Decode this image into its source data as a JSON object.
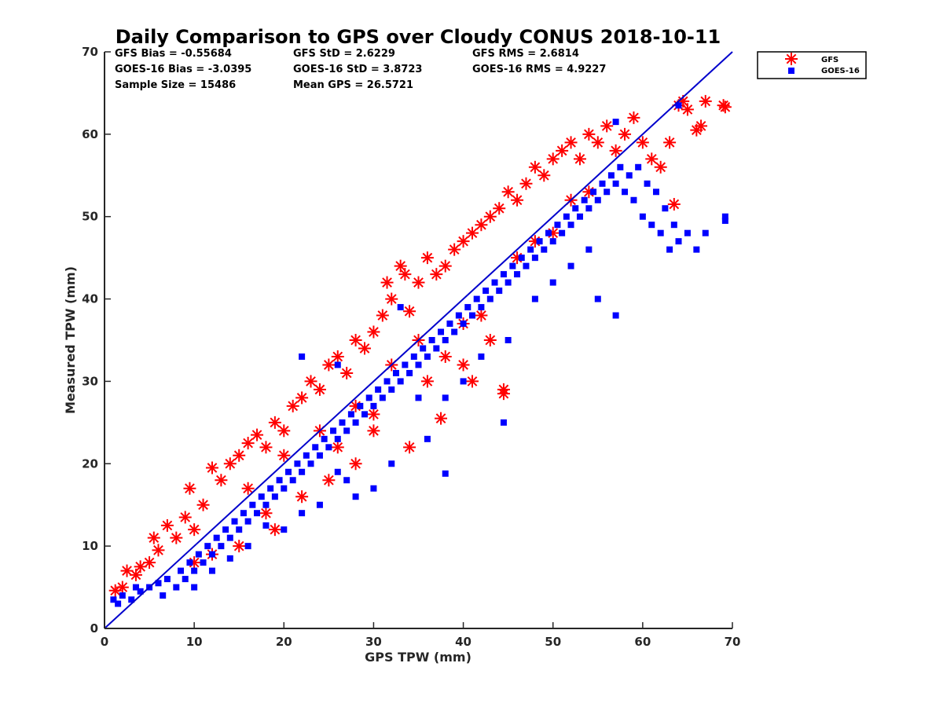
{
  "chart_data": {
    "type": "scatter",
    "title": "Daily Comparison to GPS over Cloudy CONUS 2018-10-11",
    "xlabel": "GPS TPW (mm)",
    "ylabel": "Measured TPW (mm)",
    "xlim": [
      0,
      70
    ],
    "ylim": [
      0,
      70
    ],
    "xticks": [
      "0",
      "10",
      "20",
      "30",
      "40",
      "50",
      "60",
      "70"
    ],
    "yticks": [
      "0",
      "10",
      "20",
      "30",
      "40",
      "50",
      "60",
      "70"
    ],
    "grid": false,
    "legend_placement": "outside-top-right",
    "reference_line": {
      "x": [
        0,
        70
      ],
      "y": [
        0,
        70
      ],
      "color": "#0000cc"
    },
    "stats": {
      "gfs_bias": "GFS Bias = -0.55684",
      "gfs_std": "GFS StD = 2.6229",
      "gfs_rms": "GFS RMS = 2.6814",
      "goes_bias": "GOES-16 Bias = -3.0395",
      "goes_std": "GOES-16 StD = 3.8723",
      "goes_rms": "GOES-16 RMS = 4.9227",
      "sample_size": "Sample Size = 15486",
      "mean_gps": "Mean GPS = 26.5721"
    },
    "series": [
      {
        "name": "GFS",
        "marker": "asterisk",
        "color": "#ff0000",
        "points": [
          [
            1.2,
            4.6
          ],
          [
            2,
            5
          ],
          [
            2.5,
            7
          ],
          [
            3.5,
            6.5
          ],
          [
            4,
            7.5
          ],
          [
            5,
            8
          ],
          [
            5.5,
            11
          ],
          [
            6,
            9.5
          ],
          [
            7,
            12.5
          ],
          [
            8,
            11
          ],
          [
            9,
            13.5
          ],
          [
            9.5,
            17
          ],
          [
            10,
            12
          ],
          [
            11,
            15
          ],
          [
            12,
            19.5
          ],
          [
            13,
            18
          ],
          [
            14,
            20
          ],
          [
            15,
            21
          ],
          [
            16,
            22.5
          ],
          [
            17,
            23.5
          ],
          [
            18,
            22
          ],
          [
            19,
            25
          ],
          [
            20,
            24
          ],
          [
            21,
            27
          ],
          [
            22,
            28
          ],
          [
            23,
            30
          ],
          [
            24,
            29
          ],
          [
            25,
            32
          ],
          [
            26,
            33
          ],
          [
            27,
            31
          ],
          [
            28,
            35
          ],
          [
            29,
            34
          ],
          [
            30,
            36
          ],
          [
            31,
            38
          ],
          [
            31.5,
            42
          ],
          [
            32,
            40
          ],
          [
            33,
            44
          ],
          [
            33.5,
            43
          ],
          [
            34,
            38.5
          ],
          [
            35,
            42
          ],
          [
            36,
            45
          ],
          [
            37,
            43
          ],
          [
            38,
            44
          ],
          [
            39,
            46
          ],
          [
            40,
            47
          ],
          [
            41,
            48
          ],
          [
            42,
            49
          ],
          [
            43,
            50
          ],
          [
            44,
            51
          ],
          [
            45,
            53
          ],
          [
            46,
            52
          ],
          [
            47,
            54
          ],
          [
            48,
            56
          ],
          [
            49,
            55
          ],
          [
            50,
            57
          ],
          [
            51,
            58
          ],
          [
            52,
            59
          ],
          [
            53,
            57
          ],
          [
            54,
            60
          ],
          [
            55,
            59
          ],
          [
            56,
            61
          ],
          [
            57,
            58
          ],
          [
            58,
            60
          ],
          [
            59,
            62
          ],
          [
            60,
            59
          ],
          [
            61,
            57
          ],
          [
            62,
            56
          ],
          [
            63,
            59
          ],
          [
            63.5,
            51.5
          ],
          [
            64,
            63.5
          ],
          [
            64.5,
            64
          ],
          [
            65,
            63
          ],
          [
            66,
            60.5
          ],
          [
            66.5,
            61
          ],
          [
            67,
            64
          ],
          [
            69,
            63.5
          ],
          [
            69.2,
            63.3
          ],
          [
            44.5,
            29
          ],
          [
            44.5,
            28.5
          ],
          [
            41,
            30
          ],
          [
            37.5,
            25.5
          ],
          [
            34,
            22
          ],
          [
            30,
            26
          ],
          [
            28,
            20
          ],
          [
            25,
            18
          ],
          [
            22,
            16
          ],
          [
            19,
            12
          ],
          [
            18,
            14
          ],
          [
            15,
            10
          ],
          [
            12,
            9
          ],
          [
            35,
            35
          ],
          [
            38,
            33
          ],
          [
            40,
            37
          ],
          [
            42,
            38
          ],
          [
            36,
            30
          ],
          [
            32,
            32
          ],
          [
            28,
            27
          ],
          [
            24,
            24
          ],
          [
            20,
            21
          ],
          [
            16,
            17
          ],
          [
            46,
            45
          ],
          [
            48,
            47
          ],
          [
            50,
            48
          ],
          [
            52,
            52
          ],
          [
            54,
            53
          ],
          [
            43,
            35
          ],
          [
            40,
            32
          ],
          [
            30,
            24
          ],
          [
            26,
            22
          ],
          [
            10,
            8
          ]
        ]
      },
      {
        "name": "GOES-16",
        "marker": "square",
        "color": "#0000ff",
        "points": [
          [
            1,
            3.5
          ],
          [
            1.5,
            3
          ],
          [
            2,
            4
          ],
          [
            3,
            3.5
          ],
          [
            3.5,
            5
          ],
          [
            4,
            4.5
          ],
          [
            5,
            5
          ],
          [
            6,
            5.5
          ],
          [
            6.5,
            4
          ],
          [
            7,
            6
          ],
          [
            8,
            5
          ],
          [
            8.5,
            7
          ],
          [
            9,
            6
          ],
          [
            9.5,
            8
          ],
          [
            10,
            7
          ],
          [
            10.5,
            9
          ],
          [
            11,
            8
          ],
          [
            11.5,
            10
          ],
          [
            12,
            9
          ],
          [
            12.5,
            11
          ],
          [
            13,
            10
          ],
          [
            13.5,
            12
          ],
          [
            14,
            11
          ],
          [
            14.5,
            13
          ],
          [
            15,
            12
          ],
          [
            15.5,
            14
          ],
          [
            16,
            13
          ],
          [
            16.5,
            15
          ],
          [
            17,
            14
          ],
          [
            17.5,
            16
          ],
          [
            18,
            15
          ],
          [
            18.5,
            17
          ],
          [
            19,
            16
          ],
          [
            19.5,
            18
          ],
          [
            20,
            17
          ],
          [
            20.5,
            19
          ],
          [
            21,
            18
          ],
          [
            21.5,
            20
          ],
          [
            22,
            19
          ],
          [
            22.5,
            21
          ],
          [
            23,
            20
          ],
          [
            23.5,
            22
          ],
          [
            24,
            21
          ],
          [
            24.5,
            23
          ],
          [
            25,
            22
          ],
          [
            25.5,
            24
          ],
          [
            26,
            23
          ],
          [
            26.5,
            25
          ],
          [
            27,
            24
          ],
          [
            27.5,
            26
          ],
          [
            28,
            25
          ],
          [
            28.5,
            27
          ],
          [
            29,
            26
          ],
          [
            29.5,
            28
          ],
          [
            30,
            27
          ],
          [
            30.5,
            29
          ],
          [
            31,
            28
          ],
          [
            31.5,
            30
          ],
          [
            32,
            29
          ],
          [
            32.5,
            31
          ],
          [
            33,
            30
          ],
          [
            33.5,
            32
          ],
          [
            34,
            31
          ],
          [
            34.5,
            33
          ],
          [
            35,
            32
          ],
          [
            35.5,
            34
          ],
          [
            36,
            33
          ],
          [
            36.5,
            35
          ],
          [
            37,
            34
          ],
          [
            37.5,
            36
          ],
          [
            38,
            35
          ],
          [
            38.5,
            37
          ],
          [
            39,
            36
          ],
          [
            39.5,
            38
          ],
          [
            40,
            37
          ],
          [
            40.5,
            39
          ],
          [
            41,
            38
          ],
          [
            41.5,
            40
          ],
          [
            42,
            39
          ],
          [
            42.5,
            41
          ],
          [
            43,
            40
          ],
          [
            43.5,
            42
          ],
          [
            44,
            41
          ],
          [
            44.5,
            43
          ],
          [
            45,
            42
          ],
          [
            45.5,
            44
          ],
          [
            46,
            43
          ],
          [
            46.5,
            45
          ],
          [
            47,
            44
          ],
          [
            47.5,
            46
          ],
          [
            48,
            45
          ],
          [
            48.5,
            47
          ],
          [
            49,
            46
          ],
          [
            49.5,
            48
          ],
          [
            50,
            47
          ],
          [
            50.5,
            49
          ],
          [
            51,
            48
          ],
          [
            51.5,
            50
          ],
          [
            52,
            49
          ],
          [
            52.5,
            51
          ],
          [
            53,
            50
          ],
          [
            53.5,
            52
          ],
          [
            54,
            51
          ],
          [
            54.5,
            53
          ],
          [
            55,
            52
          ],
          [
            55.5,
            54
          ],
          [
            56,
            53
          ],
          [
            56.5,
            55
          ],
          [
            57,
            54
          ],
          [
            57.5,
            56
          ],
          [
            58,
            53
          ],
          [
            58.5,
            55
          ],
          [
            59,
            52
          ],
          [
            59.5,
            56
          ],
          [
            60,
            50
          ],
          [
            60.5,
            54
          ],
          [
            61,
            49
          ],
          [
            61.5,
            53
          ],
          [
            62,
            48
          ],
          [
            62.5,
            51
          ],
          [
            63,
            46
          ],
          [
            63.5,
            49
          ],
          [
            64,
            47
          ],
          [
            65,
            48
          ],
          [
            66,
            46
          ],
          [
            67,
            48
          ],
          [
            69.2,
            49.5
          ],
          [
            69.2,
            50
          ],
          [
            64,
            63.5
          ],
          [
            57,
            61.5
          ],
          [
            44.5,
            25
          ],
          [
            38,
            18.8
          ],
          [
            36,
            23
          ],
          [
            32,
            20
          ],
          [
            30,
            17
          ],
          [
            28,
            16
          ],
          [
            26,
            19
          ],
          [
            24,
            15
          ],
          [
            22,
            14
          ],
          [
            20,
            12
          ],
          [
            18,
            12.5
          ],
          [
            16,
            10
          ],
          [
            14,
            8.5
          ],
          [
            12,
            7
          ],
          [
            10,
            5
          ],
          [
            22,
            33
          ],
          [
            26,
            32
          ],
          [
            33,
            39
          ],
          [
            35,
            28
          ],
          [
            42,
            33
          ],
          [
            45,
            35
          ],
          [
            48,
            40
          ],
          [
            50,
            42
          ],
          [
            52,
            44
          ],
          [
            54,
            46
          ],
          [
            55,
            40
          ],
          [
            57,
            38
          ],
          [
            40,
            30
          ],
          [
            38,
            28
          ],
          [
            27,
            18
          ]
        ]
      }
    ]
  }
}
